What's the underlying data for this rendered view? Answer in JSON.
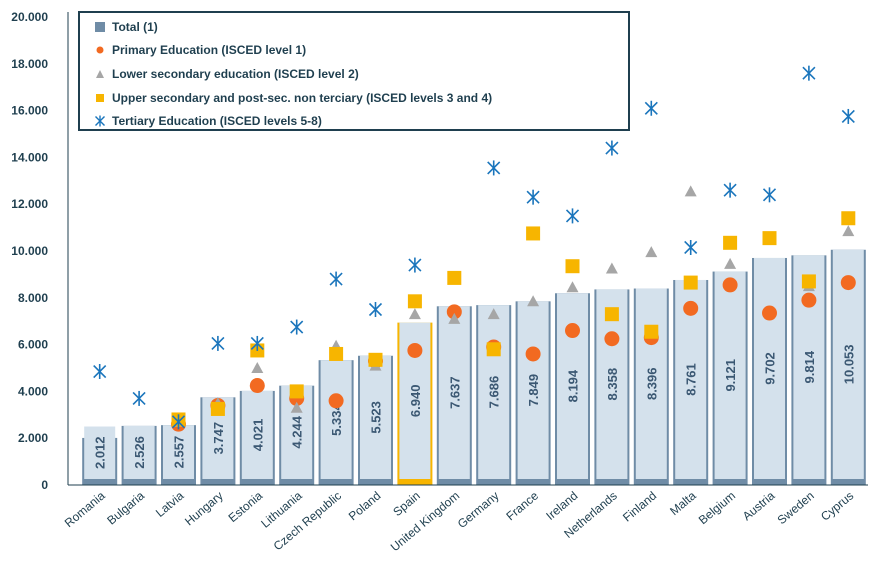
{
  "chart_data": {
    "type": "bar",
    "title": "",
    "xlabel": "",
    "ylabel": "",
    "ylim": [
      0,
      20000
    ],
    "y_ticks": [
      "0",
      "2.000",
      "4.000",
      "6.000",
      "8.000",
      "10.000",
      "12.000",
      "14.000",
      "16.000",
      "18.000",
      "20.000"
    ],
    "categories": [
      "Romania",
      "Bulgaria",
      "Latvia",
      "Hungary",
      "Estonia",
      "Lithuania",
      "Czech Republic",
      "Poland",
      "Spain",
      "United Kingdom",
      "Germany",
      "France",
      "Ireland",
      "Netherlands",
      "Finland",
      "Malta",
      "Belgium",
      "Austria",
      "Sweden",
      "Cyprus"
    ],
    "value_labels": [
      "2.012",
      "2.526",
      "2.557",
      "3.747",
      "4.021",
      "4.244",
      "5.334",
      "5.523",
      "6.940",
      "7.637",
      "7.686",
      "7.849",
      "8.194",
      "8.358",
      "8.396",
      "8.761",
      "9.121",
      "9.702",
      "9.814",
      "10.053"
    ],
    "highlight_category": "Spain",
    "legend_position": "top-left",
    "grid": false,
    "series": [
      {
        "name": "Total (1)",
        "kind": "bar",
        "color": "#6f8ca6",
        "highlight_color": "#f7b500",
        "values": [
          2012,
          2526,
          2557,
          3747,
          4021,
          4244,
          5334,
          5523,
          6940,
          7637,
          7686,
          7849,
          8194,
          8358,
          8396,
          8761,
          9121,
          9702,
          9814,
          10053
        ]
      },
      {
        "name": "Primary Education (ISCED level 1)",
        "kind": "circle",
        "color": "#f26a21",
        "values": [
          null,
          null,
          2600,
          3400,
          4250,
          3700,
          3600,
          5300,
          5750,
          7400,
          5900,
          5600,
          6600,
          6250,
          6300,
          7550,
          8550,
          7350,
          7900,
          8650
        ]
      },
      {
        "name": "Lower secondary education (ISCED level 2)",
        "kind": "triangle",
        "color": "#a6a6a6",
        "values": [
          null,
          null,
          2700,
          3500,
          5000,
          3300,
          5950,
          5100,
          7300,
          7100,
          7300,
          7850,
          8450,
          9250,
          9950,
          12550,
          9450,
          10500,
          8500,
          10850
        ]
      },
      {
        "name": "Upper secondary and post-sec. non terciary (ISCED levels 3 and 4)",
        "kind": "square",
        "color": "#f7b500",
        "values": [
          null,
          null,
          2800,
          3250,
          5750,
          4000,
          5600,
          5350,
          7850,
          8850,
          5800,
          10750,
          9350,
          7300,
          6550,
          8650,
          10350,
          10550,
          8700,
          11400
        ]
      },
      {
        "name": "Tertiary Education (ISCED levels 5-8)",
        "kind": "star",
        "color": "#1a75bc",
        "values": [
          4850,
          3700,
          2700,
          6050,
          6050,
          6750,
          8800,
          7500,
          9400,
          null,
          13550,
          12300,
          11500,
          14400,
          16100,
          10150,
          12600,
          12400,
          17600,
          15750
        ]
      }
    ]
  }
}
